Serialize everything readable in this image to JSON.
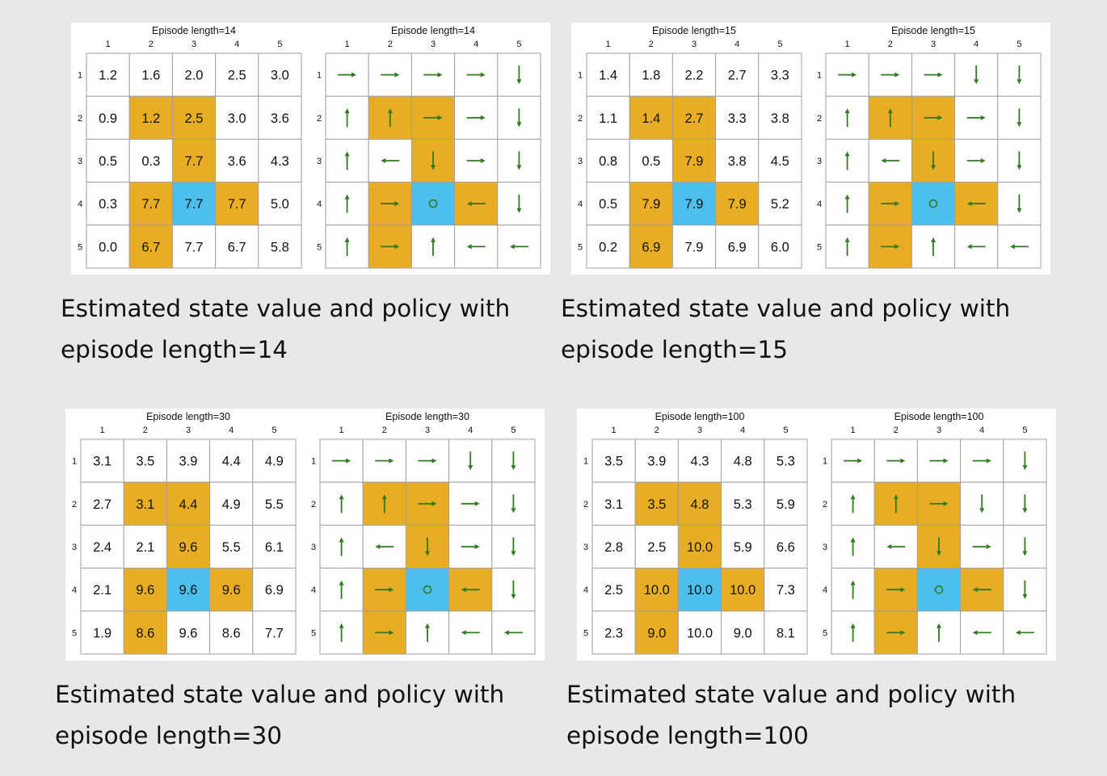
{
  "colors": {
    "background": "#e8e8e8",
    "panel": "#ffffff",
    "forbidden": "#e9ad23",
    "target": "#4cbfec",
    "arrow": "#2f7a1f",
    "gridline": "#a0a0a0"
  },
  "axis_labels": {
    "cols": [
      "1",
      "2",
      "3",
      "4",
      "5"
    ],
    "rows": [
      "1",
      "2",
      "3",
      "4",
      "5"
    ]
  },
  "layout_grid": [
    [
      "w",
      "w",
      "w",
      "w",
      "w"
    ],
    [
      "w",
      "f",
      "f",
      "w",
      "w"
    ],
    [
      "w",
      "w",
      "f",
      "w",
      "w"
    ],
    [
      "w",
      "f",
      "t",
      "f",
      "w"
    ],
    [
      "w",
      "f",
      "w",
      "w",
      "w"
    ]
  ],
  "panels": [
    {
      "value_title": "Episode length=14",
      "policy_title": "Episode length=14",
      "caption_line1": "Estimated state value and policy with",
      "caption_line2": "episode length=14",
      "values": [
        [
          "1.2",
          "1.6",
          "2.0",
          "2.5",
          "3.0"
        ],
        [
          "0.9",
          "1.2",
          "2.5",
          "3.0",
          "3.6"
        ],
        [
          "0.5",
          "0.3",
          "7.7",
          "3.6",
          "4.3"
        ],
        [
          "0.3",
          "7.7",
          "7.7",
          "7.7",
          "5.0"
        ],
        [
          "0.0",
          "6.7",
          "7.7",
          "6.7",
          "5.8"
        ]
      ],
      "policy": [
        [
          "right",
          "right",
          "right",
          "right",
          "down"
        ],
        [
          "up",
          "up",
          "right",
          "right",
          "down"
        ],
        [
          "up",
          "left",
          "down",
          "right",
          "down"
        ],
        [
          "up",
          "right",
          "stay",
          "left",
          "down"
        ],
        [
          "up",
          "right",
          "up",
          "left",
          "left"
        ]
      ]
    },
    {
      "value_title": "Episode length=15",
      "policy_title": "Episode length=15",
      "caption_line1": "Estimated state value and policy with",
      "caption_line2": "episode length=15",
      "values": [
        [
          "1.4",
          "1.8",
          "2.2",
          "2.7",
          "3.3"
        ],
        [
          "1.1",
          "1.4",
          "2.7",
          "3.3",
          "3.8"
        ],
        [
          "0.8",
          "0.5",
          "7.9",
          "3.8",
          "4.5"
        ],
        [
          "0.5",
          "7.9",
          "7.9",
          "7.9",
          "5.2"
        ],
        [
          "0.2",
          "6.9",
          "7.9",
          "6.9",
          "6.0"
        ]
      ],
      "policy": [
        [
          "right",
          "right",
          "right",
          "down",
          "down"
        ],
        [
          "up",
          "up",
          "right",
          "right",
          "down"
        ],
        [
          "up",
          "left",
          "down",
          "right",
          "down"
        ],
        [
          "up",
          "right",
          "stay",
          "left",
          "down"
        ],
        [
          "up",
          "right",
          "up",
          "left",
          "left"
        ]
      ]
    },
    {
      "value_title": "Episode length=30",
      "policy_title": "Episode length=30",
      "caption_line1": "Estimated state value and policy with",
      "caption_line2": "episode length=30",
      "values": [
        [
          "3.1",
          "3.5",
          "3.9",
          "4.4",
          "4.9"
        ],
        [
          "2.7",
          "3.1",
          "4.4",
          "4.9",
          "5.5"
        ],
        [
          "2.4",
          "2.1",
          "9.6",
          "5.5",
          "6.1"
        ],
        [
          "2.1",
          "9.6",
          "9.6",
          "9.6",
          "6.9"
        ],
        [
          "1.9",
          "8.6",
          "9.6",
          "8.6",
          "7.7"
        ]
      ],
      "policy": [
        [
          "right",
          "right",
          "right",
          "down",
          "down"
        ],
        [
          "up",
          "up",
          "right",
          "right",
          "down"
        ],
        [
          "up",
          "left",
          "down",
          "right",
          "down"
        ],
        [
          "up",
          "right",
          "stay",
          "left",
          "down"
        ],
        [
          "up",
          "right",
          "up",
          "left",
          "left"
        ]
      ]
    },
    {
      "value_title": "Episode length=100",
      "policy_title": "Episode length=100",
      "caption_line1": "Estimated state value and policy with",
      "caption_line2": "episode length=100",
      "values": [
        [
          "3.5",
          "3.9",
          "4.3",
          "4.8",
          "5.3"
        ],
        [
          "3.1",
          "3.5",
          "4.8",
          "5.3",
          "5.9"
        ],
        [
          "2.8",
          "2.5",
          "10.0",
          "5.9",
          "6.6"
        ],
        [
          "2.5",
          "10.0",
          "10.0",
          "10.0",
          "7.3"
        ],
        [
          "2.3",
          "9.0",
          "10.0",
          "9.0",
          "8.1"
        ]
      ],
      "policy": [
        [
          "right",
          "right",
          "right",
          "right",
          "down"
        ],
        [
          "up",
          "up",
          "right",
          "down",
          "down"
        ],
        [
          "up",
          "left",
          "down",
          "right",
          "down"
        ],
        [
          "up",
          "right",
          "stay",
          "left",
          "down"
        ],
        [
          "up",
          "right",
          "up",
          "left",
          "left"
        ]
      ]
    }
  ]
}
